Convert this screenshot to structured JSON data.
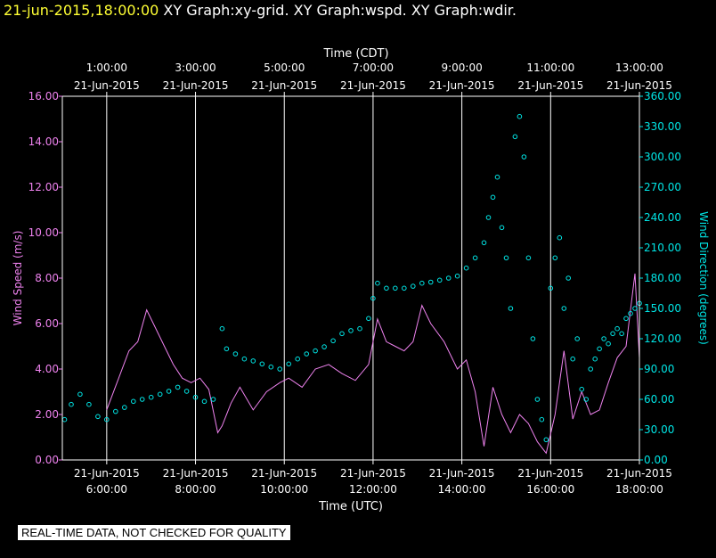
{
  "header": {
    "timestamp": "21-jun-2015,18:00:00",
    "title": "XY Graph:xy-grid.  XY Graph:wspd.  XY Graph:wdir."
  },
  "disclaimer": "REAL-TIME DATA, NOT CHECKED FOR QUALITY",
  "colors": {
    "speed": "#ee82ee",
    "direction": "#00e5e5",
    "grid": "#ffffff",
    "background": "#000000"
  },
  "chart_data": {
    "type": "line",
    "x_top_title": "Time (CDT)",
    "x_bottom_title": "Time (UTC)",
    "x_range_utc_hours": [
      5,
      18
    ],
    "top_ticks": [
      {
        "hour": 6,
        "time": "1:00:00",
        "date": "21-Jun-2015"
      },
      {
        "hour": 8,
        "time": "3:00:00",
        "date": "21-Jun-2015"
      },
      {
        "hour": 10,
        "time": "5:00:00",
        "date": "21-Jun-2015"
      },
      {
        "hour": 12,
        "time": "7:00:00",
        "date": "21-Jun-2015"
      },
      {
        "hour": 14,
        "time": "9:00:00",
        "date": "21-Jun-2015"
      },
      {
        "hour": 16,
        "time": "11:00:00",
        "date": "21-Jun-2015"
      },
      {
        "hour": 18,
        "time": "13:00:00",
        "date": "21-Jun-2015"
      }
    ],
    "bottom_ticks": [
      {
        "hour": 6,
        "time": "6:00:00",
        "date": "21-Jun-2015"
      },
      {
        "hour": 8,
        "time": "8:00:00",
        "date": "21-Jun-2015"
      },
      {
        "hour": 10,
        "time": "10:00:00",
        "date": "21-Jun-2015"
      },
      {
        "hour": 12,
        "time": "12:00:00",
        "date": "21-Jun-2015"
      },
      {
        "hour": 14,
        "time": "14:00:00",
        "date": "21-Jun-2015"
      },
      {
        "hour": 16,
        "time": "16:00:00",
        "date": "21-Jun-2015"
      },
      {
        "hour": 18,
        "time": "18:00:00",
        "date": "21-Jun-2015"
      }
    ],
    "y_left": {
      "label": "Wind Speed (m/s)",
      "range": [
        0,
        16
      ],
      "ticks": [
        "0.00",
        "2.00",
        "4.00",
        "6.00",
        "8.00",
        "10.00",
        "12.00",
        "14.00",
        "16.00"
      ]
    },
    "y_right": {
      "label": "Wind Direction (degrees)",
      "range": [
        0,
        360
      ],
      "ticks": [
        "0.00",
        "30.00",
        "60.00",
        "90.00",
        "120.00",
        "150.00",
        "180.00",
        "210.00",
        "240.00",
        "270.00",
        "300.00",
        "330.00",
        "360.00"
      ]
    },
    "series": [
      {
        "name": "Wind Speed (m/s)",
        "axis": "left",
        "style": "line",
        "x": [
          6.0,
          6.25,
          6.5,
          6.7,
          6.9,
          7.1,
          7.3,
          7.5,
          7.7,
          7.9,
          8.1,
          8.3,
          8.5,
          8.6,
          8.8,
          9.0,
          9.3,
          9.6,
          9.9,
          10.1,
          10.4,
          10.7,
          11.0,
          11.3,
          11.6,
          11.9,
          12.1,
          12.3,
          12.5,
          12.7,
          12.9,
          13.1,
          13.3,
          13.6,
          13.9,
          14.1,
          14.3,
          14.5,
          14.7,
          14.9,
          15.1,
          15.3,
          15.5,
          15.7,
          15.9,
          16.1,
          16.3,
          16.5,
          16.7,
          16.9,
          17.1,
          17.3,
          17.5,
          17.7,
          17.9,
          18.0
        ],
        "y": [
          2.2,
          3.5,
          4.8,
          5.2,
          6.6,
          5.8,
          5.0,
          4.2,
          3.6,
          3.4,
          3.6,
          3.1,
          1.2,
          1.5,
          2.5,
          3.2,
          2.2,
          3.0,
          3.4,
          3.6,
          3.2,
          4.0,
          4.2,
          3.8,
          3.5,
          4.2,
          6.2,
          5.2,
          5.0,
          4.8,
          5.2,
          6.8,
          6.0,
          5.2,
          4.0,
          4.4,
          3.0,
          0.6,
          3.2,
          2.0,
          1.2,
          2.0,
          1.6,
          0.8,
          0.3,
          2.0,
          4.8,
          1.8,
          3.0,
          2.0,
          2.2,
          3.4,
          4.5,
          5.0,
          8.2,
          4.5
        ]
      },
      {
        "name": "Wind Direction (degrees)",
        "axis": "right",
        "style": "points",
        "x": [
          5.05,
          5.2,
          5.4,
          5.6,
          5.8,
          6.0,
          6.2,
          6.4,
          6.6,
          6.8,
          7.0,
          7.2,
          7.4,
          7.6,
          7.8,
          8.0,
          8.2,
          8.4,
          8.6,
          8.7,
          8.9,
          9.1,
          9.3,
          9.5,
          9.7,
          9.9,
          10.1,
          10.3,
          10.5,
          10.7,
          10.9,
          11.1,
          11.3,
          11.5,
          11.7,
          11.9,
          12.0,
          12.1,
          12.3,
          12.5,
          12.7,
          12.9,
          13.1,
          13.3,
          13.5,
          13.7,
          13.9,
          14.1,
          14.3,
          14.5,
          14.6,
          14.7,
          14.8,
          14.9,
          15.0,
          15.1,
          15.2,
          15.3,
          15.4,
          15.5,
          15.6,
          15.7,
          15.8,
          15.9,
          16.0,
          16.1,
          16.2,
          16.3,
          16.4,
          16.5,
          16.6,
          16.7,
          16.8,
          16.9,
          17.0,
          17.1,
          17.2,
          17.3,
          17.4,
          17.5,
          17.6,
          17.7,
          17.8,
          17.9,
          18.0
        ],
        "y": [
          40,
          55,
          65,
          55,
          43,
          40,
          48,
          52,
          58,
          60,
          62,
          65,
          68,
          72,
          68,
          62,
          58,
          60,
          130,
          110,
          105,
          100,
          98,
          95,
          92,
          90,
          95,
          100,
          105,
          108,
          112,
          118,
          125,
          128,
          130,
          140,
          160,
          175,
          170,
          170,
          170,
          172,
          175,
          176,
          178,
          180,
          182,
          190,
          200,
          215,
          240,
          260,
          280,
          230,
          200,
          150,
          320,
          340,
          300,
          200,
          120,
          60,
          40,
          20,
          170,
          200,
          220,
          150,
          180,
          100,
          120,
          70,
          60,
          90,
          100,
          110,
          120,
          115,
          125,
          130,
          125,
          140,
          145,
          150,
          155
        ]
      }
    ]
  }
}
